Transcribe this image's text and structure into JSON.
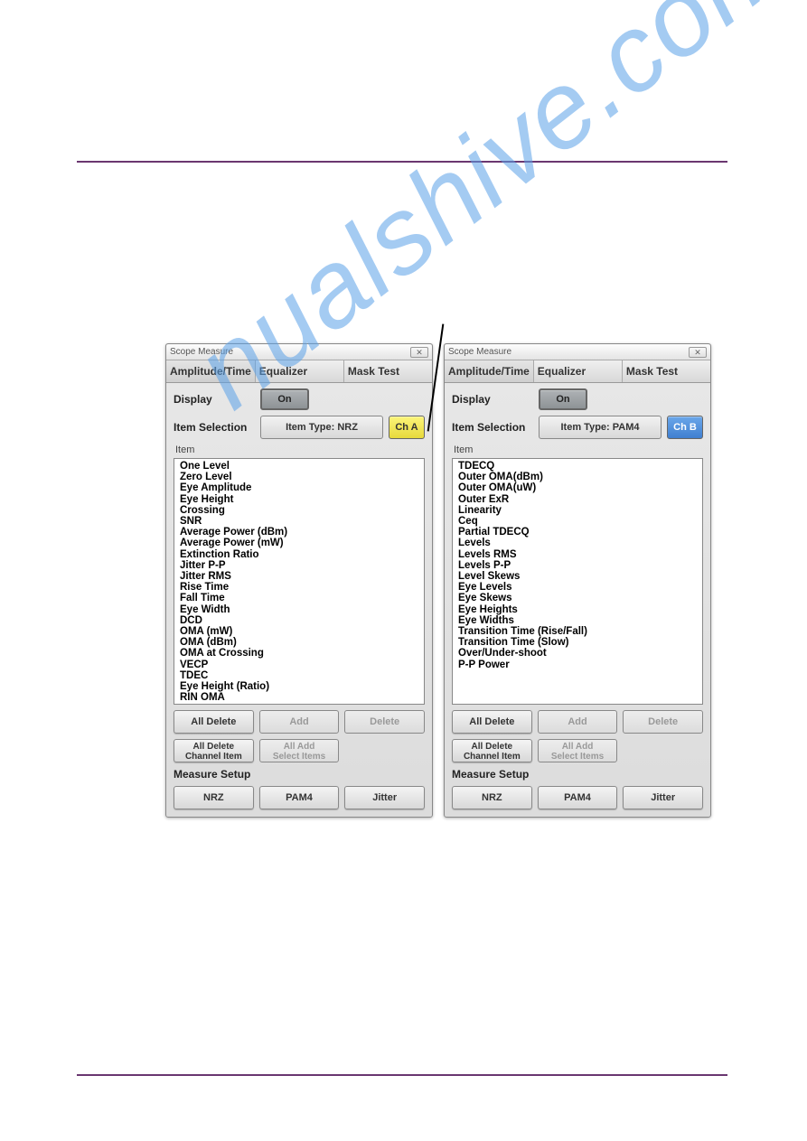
{
  "colors": {
    "hr": "#6a3670",
    "watermark": "#5aa0e8",
    "ch_a_bg_top": "#fcf57a",
    "ch_a_bg_bot": "#e7d93b",
    "ch_b_bg_top": "#6ba7ea",
    "ch_b_bg_bot": "#3f7fd0"
  },
  "watermark_text": "nualshive.com",
  "left": {
    "title": "Scope Measure",
    "tabs": [
      "Amplitude/Time",
      "Equalizer",
      "Mask Test"
    ],
    "active_tab": 0,
    "display_label": "Display",
    "display_value": "On",
    "item_selection_label": "Item Selection",
    "item_type": "Item Type: NRZ",
    "ch_label": "Ch A",
    "item_header": "Item",
    "items": [
      "One Level",
      "Zero Level",
      "Eye Amplitude",
      "Eye Height",
      "Crossing",
      "SNR",
      "Average Power (dBm)",
      "Average Power (mW)",
      "Extinction Ratio",
      "Jitter P-P",
      "Jitter RMS",
      "Rise Time",
      "Fall Time",
      "Eye Width",
      "DCD",
      "OMA (mW)",
      "OMA (dBm)",
      "OMA at Crossing",
      "VECP",
      "TDEC",
      "Eye Height (Ratio)",
      "RIN OMA"
    ],
    "buttons": {
      "all_delete": "All Delete",
      "add": "Add",
      "delete": "Delete",
      "all_delete_channel_l1": "All Delete",
      "all_delete_channel_l2": "Channel Item",
      "all_add_select_l1": "All Add",
      "all_add_select_l2": "Select Items"
    },
    "measure_setup_label": "Measure Setup",
    "measure_buttons": [
      "NRZ",
      "PAM4",
      "Jitter"
    ]
  },
  "right": {
    "title": "Scope Measure",
    "tabs": [
      "Amplitude/Time",
      "Equalizer",
      "Mask Test"
    ],
    "active_tab": 0,
    "display_label": "Display",
    "display_value": "On",
    "item_selection_label": "Item Selection",
    "item_type": "Item Type: PAM4",
    "ch_label": "Ch B",
    "item_header": "Item",
    "items": [
      "TDECQ",
      "Outer OMA(dBm)",
      "Outer OMA(uW)",
      "Outer ExR",
      "Linearity",
      "Ceq",
      "Partial TDECQ",
      "Levels",
      "Levels RMS",
      "Levels P-P",
      "Level Skews",
      "Eye Levels",
      "Eye Skews",
      "Eye Heights",
      "Eye Widths",
      "Transition Time (Rise/Fall)",
      "Transition Time (Slow)",
      "Over/Under-shoot",
      "P-P Power"
    ],
    "buttons": {
      "all_delete": "All Delete",
      "add": "Add",
      "delete": "Delete",
      "all_delete_channel_l1": "All Delete",
      "all_delete_channel_l2": "Channel Item",
      "all_add_select_l1": "All Add",
      "all_add_select_l2": "Select Items"
    },
    "measure_setup_label": "Measure Setup",
    "measure_buttons": [
      "NRZ",
      "PAM4",
      "Jitter"
    ]
  }
}
